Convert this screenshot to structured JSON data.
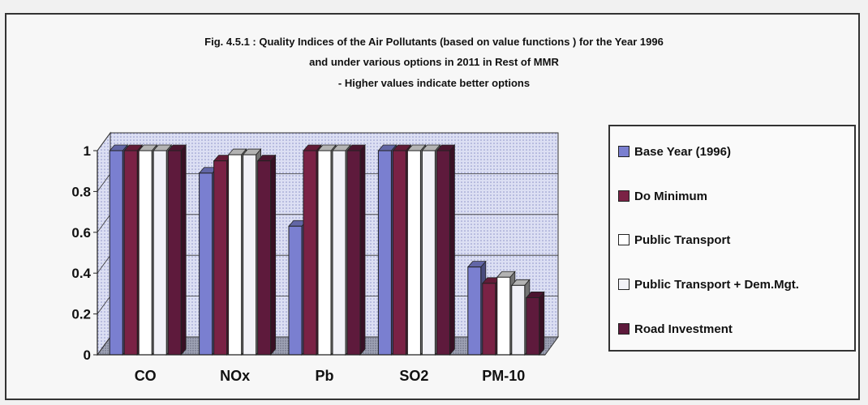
{
  "chart_data": {
    "type": "bar",
    "title_lines": [
      "Fig. 4.5.1 : Quality Indices of the Air Pollutants (based on value functions ) for the Year 1996",
      "and under various options in 2011 in Rest of MMR",
      "- Higher values indicate better options"
    ],
    "categories": [
      "CO",
      "NOx",
      "Pb",
      "SO2",
      "PM-10"
    ],
    "series": [
      {
        "name": "Base Year (1996)",
        "color": "#7a7fd0",
        "values": [
          1.0,
          0.89,
          0.63,
          1.0,
          0.43
        ]
      },
      {
        "name": "Do Minimum",
        "color": "#7a2245",
        "values": [
          1.0,
          0.95,
          1.0,
          1.0,
          0.35
        ]
      },
      {
        "name": "Public Transport",
        "color": "#ffffff",
        "values": [
          1.0,
          0.98,
          1.0,
          1.0,
          0.38
        ]
      },
      {
        "name": "Public Transport + Dem.Mgt.",
        "color": "#f2f2f8",
        "values": [
          1.0,
          0.98,
          1.0,
          1.0,
          0.34
        ]
      },
      {
        "name": "Road Investment",
        "color": "#5e1a3c",
        "values": [
          1.0,
          0.95,
          1.0,
          1.0,
          0.28
        ]
      }
    ],
    "ylim": [
      0,
      1
    ],
    "yticks": [
      "0",
      "0.2",
      "0.4",
      "0.6",
      "0.8",
      "1"
    ],
    "grid": true,
    "legend_position": "right"
  }
}
